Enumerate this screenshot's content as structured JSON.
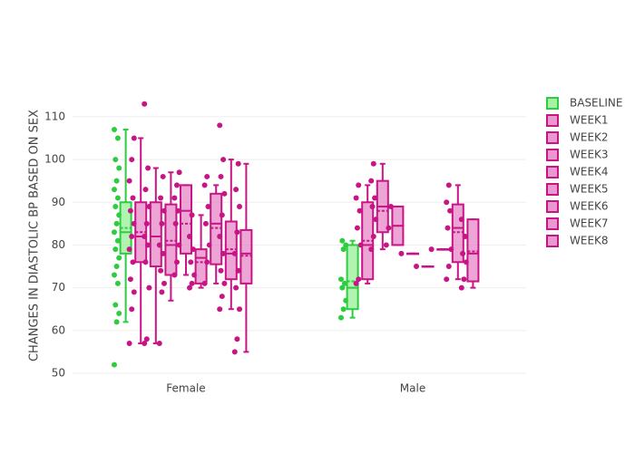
{
  "chart_data": {
    "type": "box",
    "y_label": "CHANGES IN DIASTOLIC BP BASED ON SEX",
    "categories": [
      "Female",
      "Male"
    ],
    "ylim": [
      50,
      114
    ],
    "yticks": [
      50,
      60,
      70,
      80,
      90,
      100,
      110
    ],
    "grid": true,
    "series": [
      {
        "name": "BASELINE",
        "color": "#2ecc40",
        "fill": "#90ee90",
        "boxes": [
          {
            "min": 62,
            "q1": 78,
            "median": 83,
            "q3": 90,
            "max": 107,
            "mean": 84,
            "points": [
              52,
              62,
              64,
              66,
              71,
              73,
              75,
              77,
              79,
              81,
              83,
              85,
              87,
              89,
              91,
              93,
              95,
              98,
              100,
              105,
              107
            ]
          },
          {
            "min": 63,
            "q1": 65,
            "median": 70,
            "q3": 80,
            "max": 81,
            "mean": 71.5,
            "points": [
              63,
              65,
              67,
              70,
              71,
              72,
              79,
              80,
              81
            ]
          }
        ]
      },
      {
        "name": "WEEK1",
        "color": "#c71585",
        "fill": "#e47fc3",
        "boxes": [
          {
            "min": 57,
            "q1": 76,
            "median": 82,
            "q3": 90,
            "max": 105,
            "mean": 83,
            "points": [
              57,
              65,
              69,
              72,
              76,
              79,
              82,
              85,
              88,
              91,
              95,
              100,
              105
            ]
          },
          {
            "min": 71,
            "q1": 72,
            "median": 80,
            "q3": 90,
            "max": 94,
            "mean": 81,
            "points": [
              71,
              72,
              80,
              84,
              88,
              91,
              94
            ]
          }
        ]
      },
      {
        "name": "WEEK2",
        "color": "#c71585",
        "fill": "#e47fc3",
        "boxes": [
          {
            "min": 57,
            "q1": 75,
            "median": 82,
            "q3": 90,
            "max": 98,
            "mean": 82,
            "points": [
              57,
              58,
              70,
              76,
              80,
              82,
              85,
              89,
              93,
              98,
              113
            ]
          },
          {
            "min": 79,
            "q1": 83,
            "median": 89,
            "q3": 95,
            "max": 99,
            "mean": 88,
            "points": [
              79,
              82,
              86,
              89,
              91,
              95,
              99
            ]
          }
        ]
      },
      {
        "name": "WEEK3",
        "color": "#c71585",
        "fill": "#e47fc3",
        "boxes": [
          {
            "min": 67,
            "q1": 73,
            "median": 80,
            "q3": 89.5,
            "max": 97,
            "mean": 81,
            "points": [
              57,
              69,
              71,
              74,
              78,
              80,
              85,
              88,
              91,
              96
            ]
          },
          {
            "min": 80,
            "q1": 80,
            "median": 84.5,
            "q3": 89,
            "max": 89,
            "mean": 84.5,
            "points": [
              80,
              84,
              89
            ]
          }
        ]
      },
      {
        "name": "WEEK4",
        "color": "#c71585",
        "fill": "#e47fc3",
        "boxes": [
          {
            "min": 73,
            "q1": 78,
            "median": 88,
            "q3": 94,
            "max": 94,
            "mean": 85,
            "points": [
              73,
              76,
              80,
              85,
              88,
              91,
              94,
              97
            ]
          },
          {
            "min": 78,
            "q1": 78,
            "median": 78,
            "q3": 78,
            "max": 78,
            "mean": 78,
            "points": [
              78
            ]
          }
        ]
      },
      {
        "name": "WEEK5",
        "color": "#c71585",
        "fill": "#e47fc3",
        "boxes": [
          {
            "min": 70,
            "q1": 71,
            "median": 77,
            "q3": 79,
            "max": 87,
            "mean": 76,
            "points": [
              70,
              71,
              73,
              76,
              79,
              82,
              87
            ]
          },
          {
            "min": 75,
            "q1": 75,
            "median": 75,
            "q3": 75,
            "max": 75,
            "mean": 75,
            "points": [
              75
            ]
          }
        ]
      },
      {
        "name": "WEEK6",
        "color": "#c71585",
        "fill": "#e47fc3",
        "boxes": [
          {
            "min": 71,
            "q1": 75.5,
            "median": 85,
            "q3": 92,
            "max": 94,
            "mean": 84,
            "points": [
              71,
              76,
              80,
              85,
              89,
              94,
              96
            ]
          },
          {
            "min": 79,
            "q1": 79,
            "median": 79,
            "q3": 79,
            "max": 79,
            "mean": 79,
            "points": [
              79
            ]
          }
        ]
      },
      {
        "name": "WEEK7",
        "color": "#c71585",
        "fill": "#e47fc3",
        "boxes": [
          {
            "min": 65,
            "q1": 72,
            "median": 78,
            "q3": 85.5,
            "max": 100,
            "mean": 79,
            "points": [
              65,
              68,
              71,
              74,
              78,
              82,
              87,
              92,
              96,
              100,
              108
            ]
          },
          {
            "min": 72,
            "q1": 76,
            "median": 84,
            "q3": 89.5,
            "max": 94,
            "mean": 83,
            "points": [
              72,
              75,
              79,
              84,
              88,
              90,
              94
            ]
          }
        ]
      },
      {
        "name": "WEEK8",
        "color": "#c71585",
        "fill": "#e47fc3",
        "boxes": [
          {
            "min": 55,
            "q1": 71,
            "median": 78,
            "q3": 83.5,
            "max": 99,
            "mean": 77.5,
            "points": [
              55,
              58,
              65,
              70,
              74,
              78,
              83,
              89,
              93,
              99
            ]
          },
          {
            "min": 70,
            "q1": 71.5,
            "median": 78,
            "q3": 86,
            "max": 86,
            "mean": 78.5,
            "points": [
              70,
              72,
              76,
              78,
              82,
              86
            ]
          }
        ]
      }
    ]
  }
}
